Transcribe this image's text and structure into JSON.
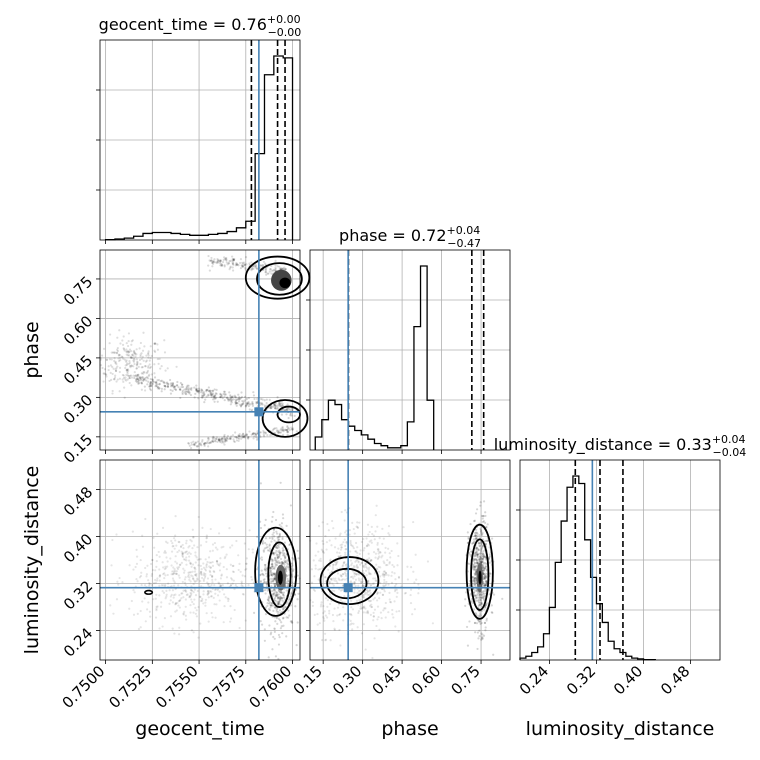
{
  "chart_data": {
    "type": "corner",
    "parameters": [
      "geocent_time",
      "phase",
      "luminosity_distance"
    ],
    "titles": [
      {
        "param": "geocent_time",
        "label": "geocent_time = 0.76",
        "plus": "+0.00",
        "minus": "−0.00"
      },
      {
        "param": "phase",
        "label": "phase = 0.72",
        "plus": "+0.04",
        "minus": "−0.47"
      },
      {
        "param": "luminosity_distance",
        "label": "luminosity_distance = 0.33",
        "plus": "+0.04",
        "minus": "−0.04"
      }
    ],
    "ranges": {
      "geocent_time": [
        0.7497,
        0.7604
      ],
      "phase": [
        0.1,
        0.86
      ],
      "luminosity_distance": [
        0.19,
        0.53
      ]
    },
    "ticks": {
      "geocent_time": {
        "values": [
          0.75,
          0.7525,
          0.755,
          0.7575,
          0.76
        ],
        "labels": [
          "0.7500",
          "0.7525",
          "0.7550",
          "0.7575",
          "0.7600"
        ]
      },
      "phase": {
        "values": [
          0.15,
          0.3,
          0.45,
          0.6,
          0.75
        ],
        "labels": [
          "0.15",
          "0.30",
          "0.45",
          "0.60",
          "0.75"
        ]
      },
      "luminosity_distance": {
        "values": [
          0.24,
          0.32,
          0.4,
          0.48
        ],
        "labels": [
          "0.24",
          "0.32",
          "0.40",
          "0.48"
        ]
      }
    },
    "truths": {
      "geocent_time": 0.7582,
      "phase": 0.245,
      "luminosity_distance": 0.313
    },
    "quantiles": {
      "geocent_time": [
        0.7578,
        0.7592,
        0.7596
      ],
      "phase": [
        0.246,
        0.715,
        0.76
      ],
      "luminosity_distance": [
        0.284,
        0.326,
        0.365
      ]
    },
    "histograms": {
      "geocent_time": {
        "edges_start": 0.75,
        "bin_width": 0.0005,
        "counts": [
          0.2,
          0.5,
          1,
          2,
          3.5,
          4,
          4,
          3.5,
          3,
          2.5,
          2.5,
          3,
          3.5,
          4.5,
          6.5,
          10,
          46,
          88,
          98,
          97
        ]
      },
      "phase": {
        "edges_start": 0.12,
        "bin_width": 0.025,
        "counts": [
          6,
          14,
          23,
          21,
          14,
          11,
          9,
          7,
          5,
          3,
          2,
          1,
          1,
          2,
          13,
          57,
          85,
          23
        ]
      },
      "luminosity_distance": {
        "edges_start": 0.19,
        "bin_width": 0.01,
        "counts": [
          0.5,
          1,
          2,
          3.5,
          7,
          14,
          26,
          37,
          46,
          49,
          47,
          32,
          22,
          15,
          10,
          5,
          3,
          2,
          1,
          0.5,
          0.3,
          0.1,
          0.1
        ]
      }
    },
    "grid": true,
    "colors": {
      "truth": "#4682b4",
      "line": "#000000",
      "grid": "#b0b0b0"
    }
  }
}
